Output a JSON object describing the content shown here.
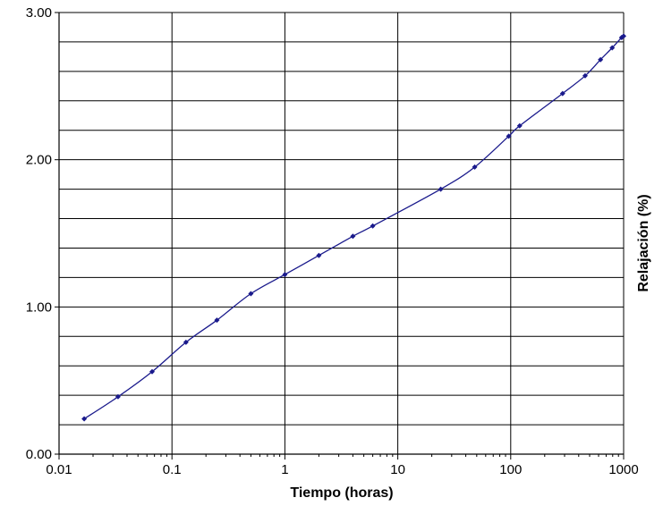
{
  "chart_data": {
    "type": "line",
    "xlabel": "Tiempo (horas)",
    "ylabel": "Relajación (%)",
    "xscale": "log",
    "xlim": [
      0.01,
      1000
    ],
    "ylim": [
      0,
      3
    ],
    "xticks": [
      {
        "value": 0.01,
        "label": "0.01"
      },
      {
        "value": 0.1,
        "label": "0.1"
      },
      {
        "value": 1,
        "label": "1"
      },
      {
        "value": 10,
        "label": "10"
      },
      {
        "value": 100,
        "label": "100"
      },
      {
        "value": 1000,
        "label": "1000"
      }
    ],
    "yticks": [
      {
        "value": 0,
        "label": "0.00"
      },
      {
        "value": 1,
        "label": "1.00"
      },
      {
        "value": 2,
        "label": "2.00"
      },
      {
        "value": 3,
        "label": "3.00"
      }
    ],
    "ygrid_step": 0.2,
    "grid": true,
    "colors": {
      "series": "#1a1a8c",
      "grid": "#000000"
    },
    "series": [
      {
        "x": [
          0.0167,
          0.0333,
          0.0667,
          0.133,
          0.25,
          0.5,
          1,
          2,
          4,
          6,
          24,
          48,
          96,
          120,
          288,
          456,
          624,
          792,
          960,
          1000
        ],
        "y": [
          0.24,
          0.39,
          0.56,
          0.76,
          0.91,
          1.09,
          1.22,
          1.35,
          1.48,
          1.55,
          1.8,
          1.95,
          2.16,
          2.23,
          2.45,
          2.57,
          2.68,
          2.76,
          2.83,
          2.84
        ]
      }
    ]
  }
}
